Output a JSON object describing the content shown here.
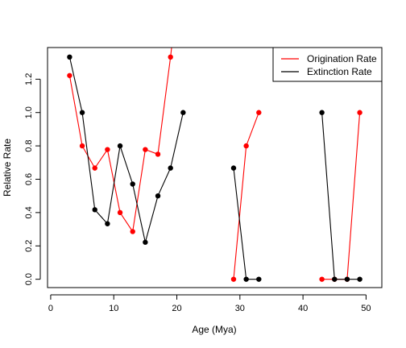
{
  "chart_data": {
    "type": "line",
    "title": "",
    "xlabel": "Age (Mya)",
    "ylabel": "Relative Rate",
    "xlim": [
      -0.5,
      52.5
    ],
    "ylim": [
      -0.05,
      1.39
    ],
    "xticks": [
      0,
      10,
      20,
      30,
      40,
      50
    ],
    "yticks": [
      0.0,
      0.2,
      0.4,
      0.6,
      0.8,
      1.0,
      1.2
    ],
    "xtick_labels": [
      "0",
      "10",
      "20",
      "30",
      "40",
      "50"
    ],
    "ytick_labels": [
      "0.0",
      "0.2",
      "0.4",
      "0.6",
      "0.8",
      "1.0",
      "1.2"
    ],
    "grid": false,
    "legend_position": "top-right",
    "series": [
      {
        "name": "Origination Rate",
        "color": "#ff0000",
        "segments": [
          [
            [
              3,
              1.222
            ],
            [
              5,
              0.8
            ],
            [
              7,
              0.667
            ],
            [
              9,
              0.778
            ],
            [
              11,
              0.4
            ],
            [
              13,
              0.286
            ],
            [
              15,
              0.778
            ],
            [
              17,
              0.75
            ],
            [
              19,
              1.333
            ],
            [
              21,
              2.0
            ]
          ],
          [
            [
              29,
              0.0
            ],
            [
              31,
              0.8
            ],
            [
              33,
              1.0
            ]
          ],
          [
            [
              43,
              0.0
            ],
            [
              45,
              0.0
            ],
            [
              47,
              0.0
            ],
            [
              49,
              1.0
            ]
          ]
        ]
      },
      {
        "name": "Extinction Rate",
        "color": "#000000",
        "segments": [
          [
            [
              3,
              1.333
            ],
            [
              5,
              1.0
            ],
            [
              7,
              0.417
            ],
            [
              9,
              0.333
            ],
            [
              11,
              0.8
            ],
            [
              13,
              0.571
            ],
            [
              15,
              0.222
            ],
            [
              17,
              0.5
            ],
            [
              19,
              0.667
            ],
            [
              21,
              1.0
            ]
          ],
          [
            [
              29,
              0.667
            ],
            [
              31,
              0.0
            ],
            [
              33,
              0.0
            ]
          ],
          [
            [
              43,
              1.0
            ],
            [
              45,
              0.0
            ],
            [
              47,
              0.0
            ],
            [
              49,
              0.0
            ]
          ]
        ]
      }
    ]
  }
}
